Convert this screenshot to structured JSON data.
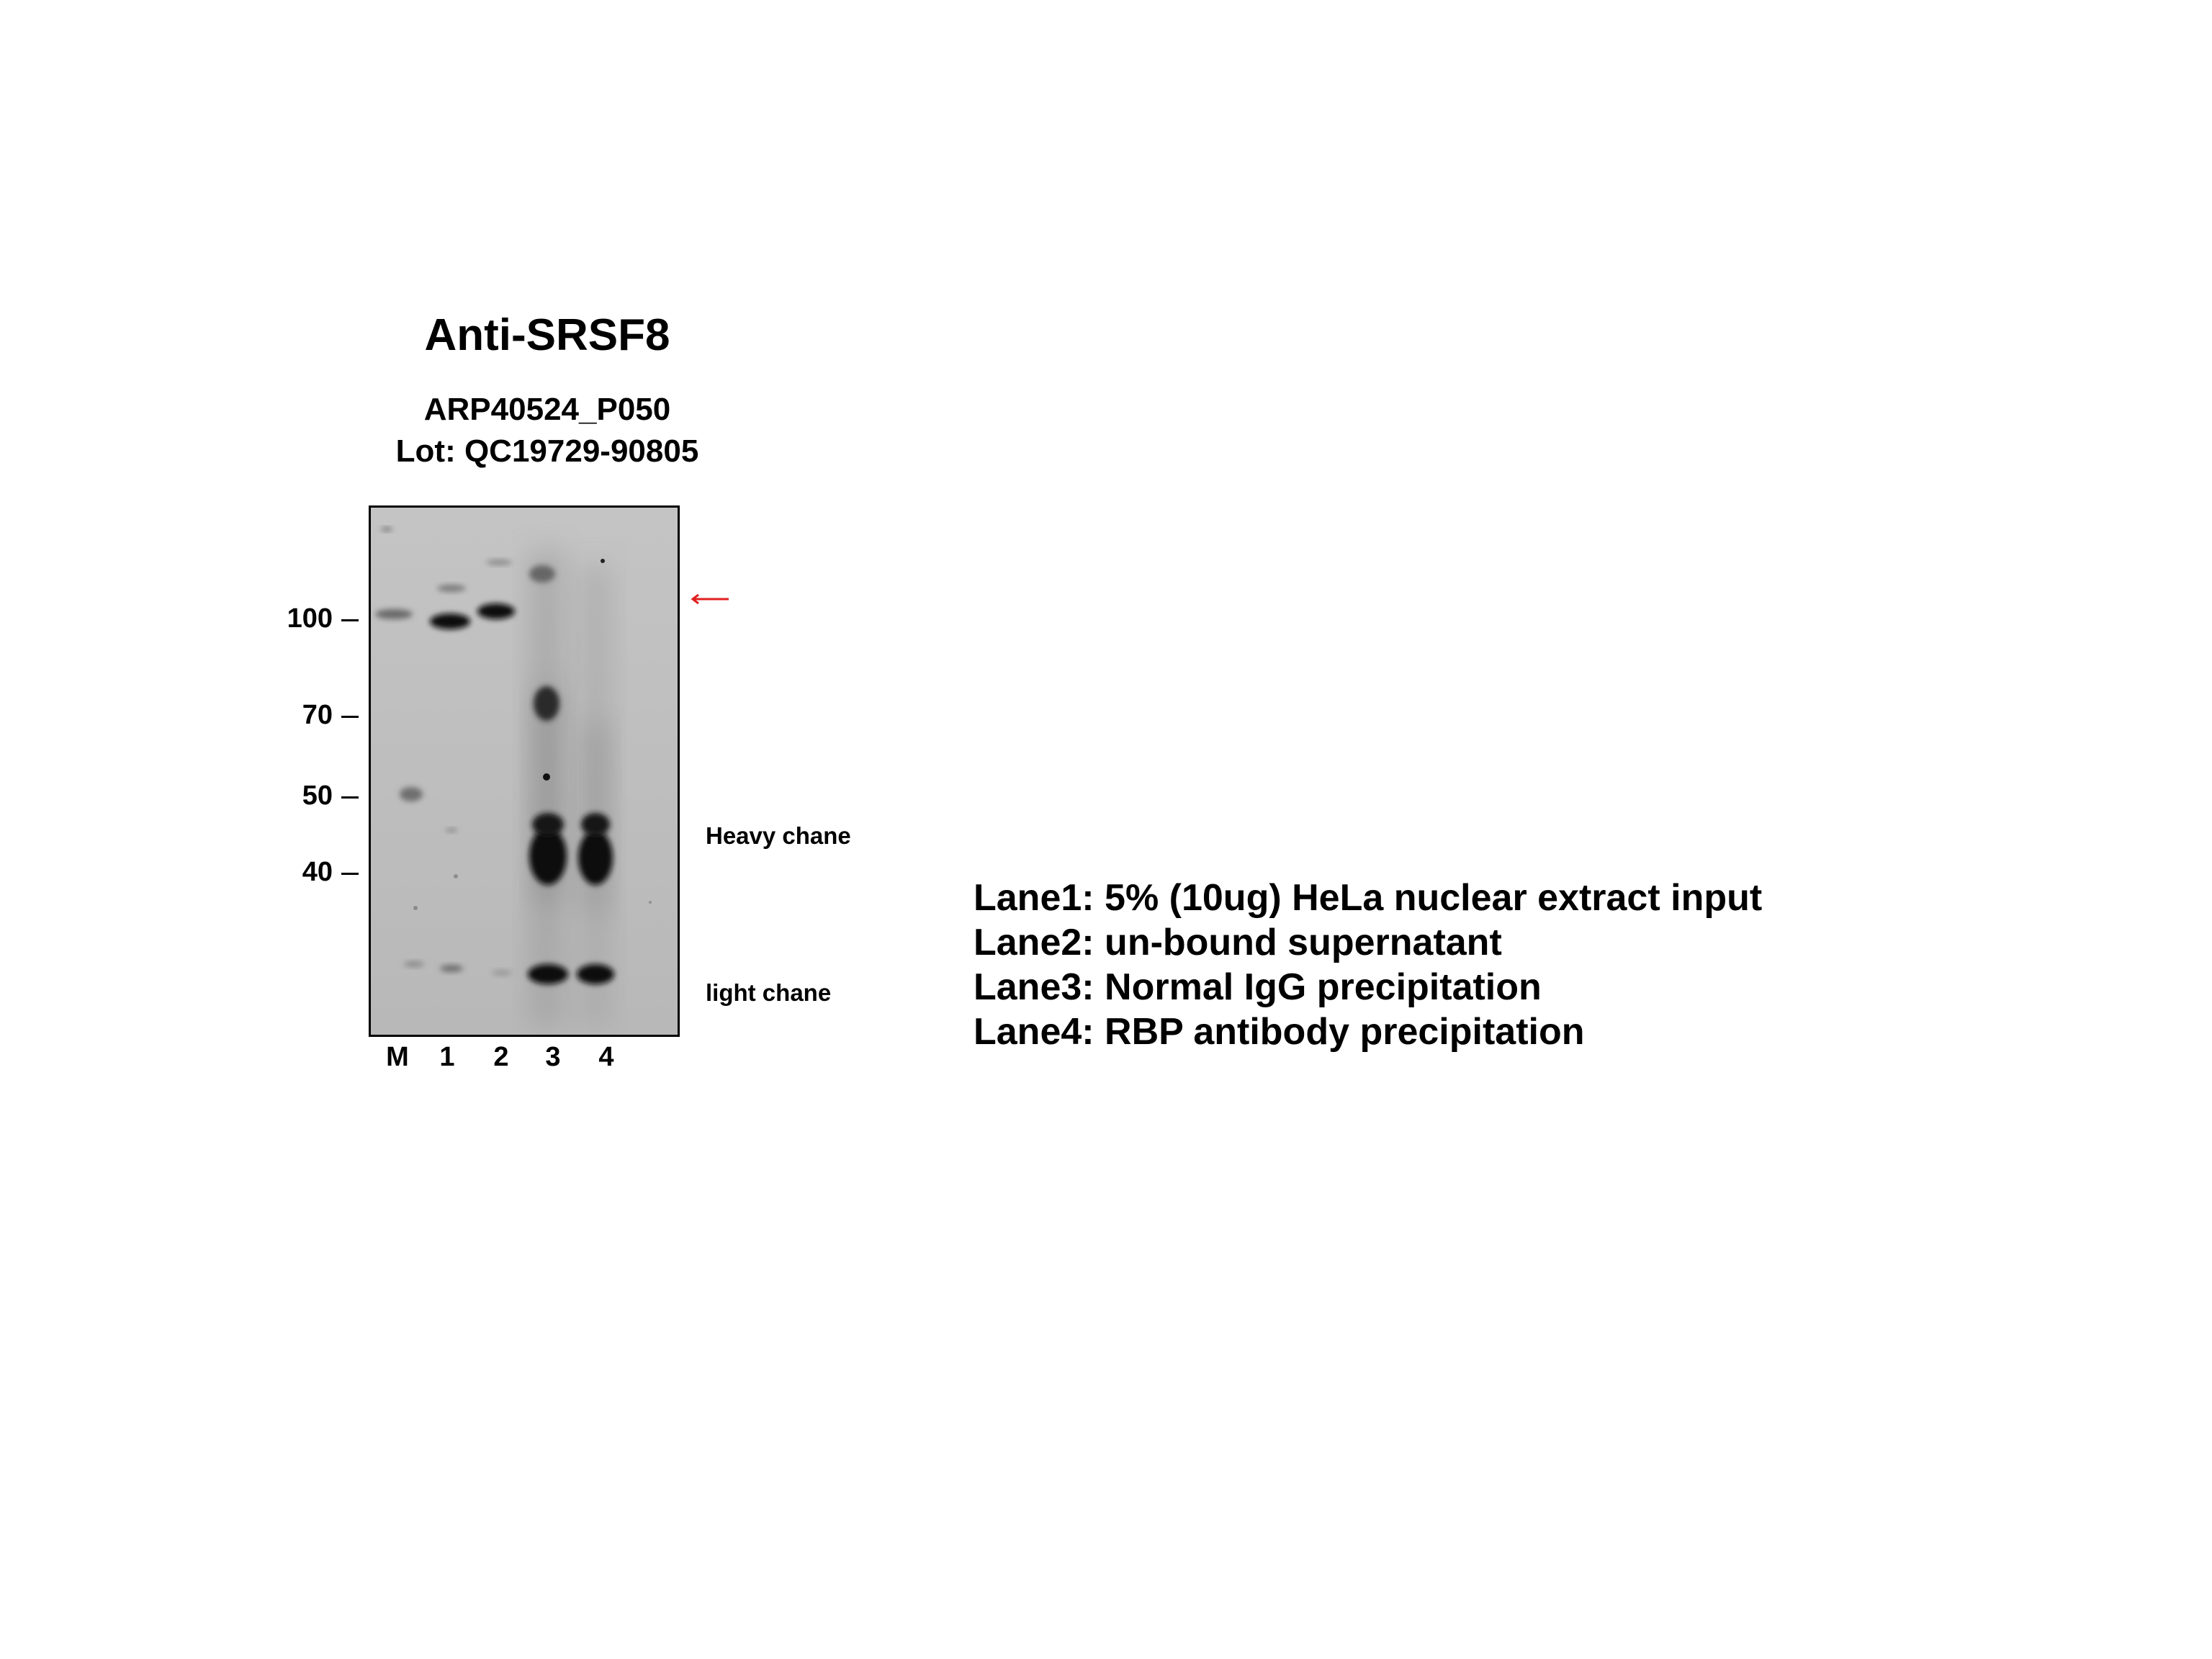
{
  "title": "Anti-SRSF8",
  "product": "ARP40524_P050",
  "lot": "Lot: QC19729-90805",
  "mw_markers": [
    "100",
    "70",
    "50",
    "40"
  ],
  "lanes": [
    "M",
    "1",
    "2",
    "3",
    "4"
  ],
  "annotations": {
    "heavy_chain": "Heavy chane",
    "light_chain": "light chane"
  },
  "target_arrow_color": "#e02020",
  "legend": [
    "Lane1: 5% (10ug) HeLa nuclear extract input",
    "Lane2: un-bound supernatant",
    "Lane3: Normal IgG precipitation",
    "Lane4: RBP antibody precipitation"
  ]
}
